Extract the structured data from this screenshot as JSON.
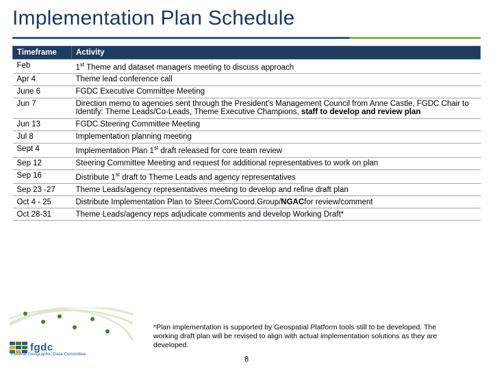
{
  "title": "Implementation Plan Schedule",
  "table": {
    "headers": {
      "timeframe": "Timeframe",
      "activity": "Activity"
    },
    "rows": [
      {
        "timeframe": "Feb",
        "activity_parts": [
          {
            "t": "1"
          },
          {
            "t": "st",
            "sup": true
          },
          {
            "t": " Theme and dataset managers meeting to discuss approach"
          }
        ]
      },
      {
        "timeframe": "Apr 4",
        "activity_parts": [
          {
            "t": "Theme lead conference call"
          }
        ]
      },
      {
        "timeframe": "June 6",
        "activity_parts": [
          {
            "t": "FGDC Executive Committee Meeting"
          }
        ]
      },
      {
        "timeframe": "Jun 7",
        "activity_parts": [
          {
            "t": "Direction memo to agencies sent through the President's Management Council from Anne Castle, FGDC Chair to Identify: Theme Leads/Co-Leads, Theme Executive Champions, "
          },
          {
            "t": "staff to develop and review plan",
            "bold": true
          }
        ]
      },
      {
        "timeframe": "Jun 13",
        "activity_parts": [
          {
            "t": "FGDC Steering Committee Meeting"
          }
        ]
      },
      {
        "timeframe": "Jul 8",
        "activity_parts": [
          {
            "t": "Implementation planning meeting"
          }
        ]
      },
      {
        "timeframe": "Sept 4",
        "activity_parts": [
          {
            "t": "Implementation Plan 1"
          },
          {
            "t": "st",
            "sup": true
          },
          {
            "t": " draft released for core team review"
          }
        ]
      },
      {
        "timeframe": "Sep 12",
        "activity_parts": [
          {
            "t": "Steering Committee Meeting and request for additional representatives to work on plan"
          }
        ]
      },
      {
        "timeframe": "Sep 16",
        "activity_parts": [
          {
            "t": "Distribute 1"
          },
          {
            "t": "st",
            "sup": true
          },
          {
            "t": " draft to Theme Leads and agency representatives"
          }
        ]
      },
      {
        "timeframe": "Sep 23 -27",
        "activity_parts": [
          {
            "t": "Theme Leads/agency representatives meeting to develop and refine draft plan"
          }
        ]
      },
      {
        "timeframe": "Oct 4 - 25",
        "activity_parts": [
          {
            "t": "Distribute Implementation Plan to Steer.Com/Coord.Group/"
          },
          {
            "t": "NGAC",
            "bold": true
          },
          {
            "t": "for review/comment"
          }
        ]
      },
      {
        "timeframe": "Oct 28-31",
        "activity_parts": [
          {
            "t": "Theme Leads/agency reps adjudicate comments and develop Working Draft*"
          }
        ]
      }
    ]
  },
  "footnote": "*Plan implementation is supported by Geospatial Platform tools still to be developed. The working draft plan will be revised to align with actual implementation solutions as they are developed.",
  "page_number": "8",
  "logo": {
    "word": "fgdc",
    "sub": "Federal Geographic Data Committee"
  },
  "colors": {
    "title": "#17375e",
    "header_bg": "#1f3b60",
    "row_border": "#9aa7b8",
    "rule_blue": "#2b5a8a",
    "rule_green": "#8eb340"
  }
}
